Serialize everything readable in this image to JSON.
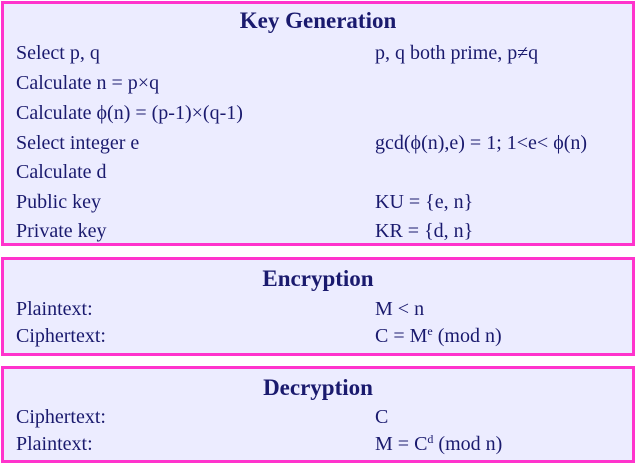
{
  "colors": {
    "border": "#ff33cc",
    "background": "#ececff",
    "text": "#1a1a6e"
  },
  "key_generation": {
    "title": "Key Generation",
    "rows": [
      {
        "label": "Select p, q",
        "value": "p, q both prime, p≠q"
      },
      {
        "label": "Calculate n = p×q",
        "value": ""
      },
      {
        "label": "Calculate ϕ(n) = (p-1)×(q-1)",
        "value": ""
      },
      {
        "label": "Select integer e",
        "value": "gcd(ϕ(n),e) = 1; 1<e< ϕ(n)"
      },
      {
        "label": "Calculate d",
        "value": ""
      },
      {
        "label": "Public key",
        "value": "KU = {e, n}"
      },
      {
        "label": "Private key",
        "value": "KR = {d, n}"
      }
    ]
  },
  "encryption": {
    "title": "Encryption",
    "rows": [
      {
        "label": "Plaintext:",
        "value": "M < n"
      },
      {
        "label": "Ciphertext:",
        "value_base": "C = M",
        "value_sup": "e",
        "value_tail": " (mod n)"
      }
    ]
  },
  "decryption": {
    "title": "Decryption",
    "rows": [
      {
        "label": "Ciphertext:",
        "value": "C"
      },
      {
        "label": "Plaintext:",
        "value_base": "M = C",
        "value_sup": "d",
        "value_tail": " (mod n)"
      }
    ]
  }
}
